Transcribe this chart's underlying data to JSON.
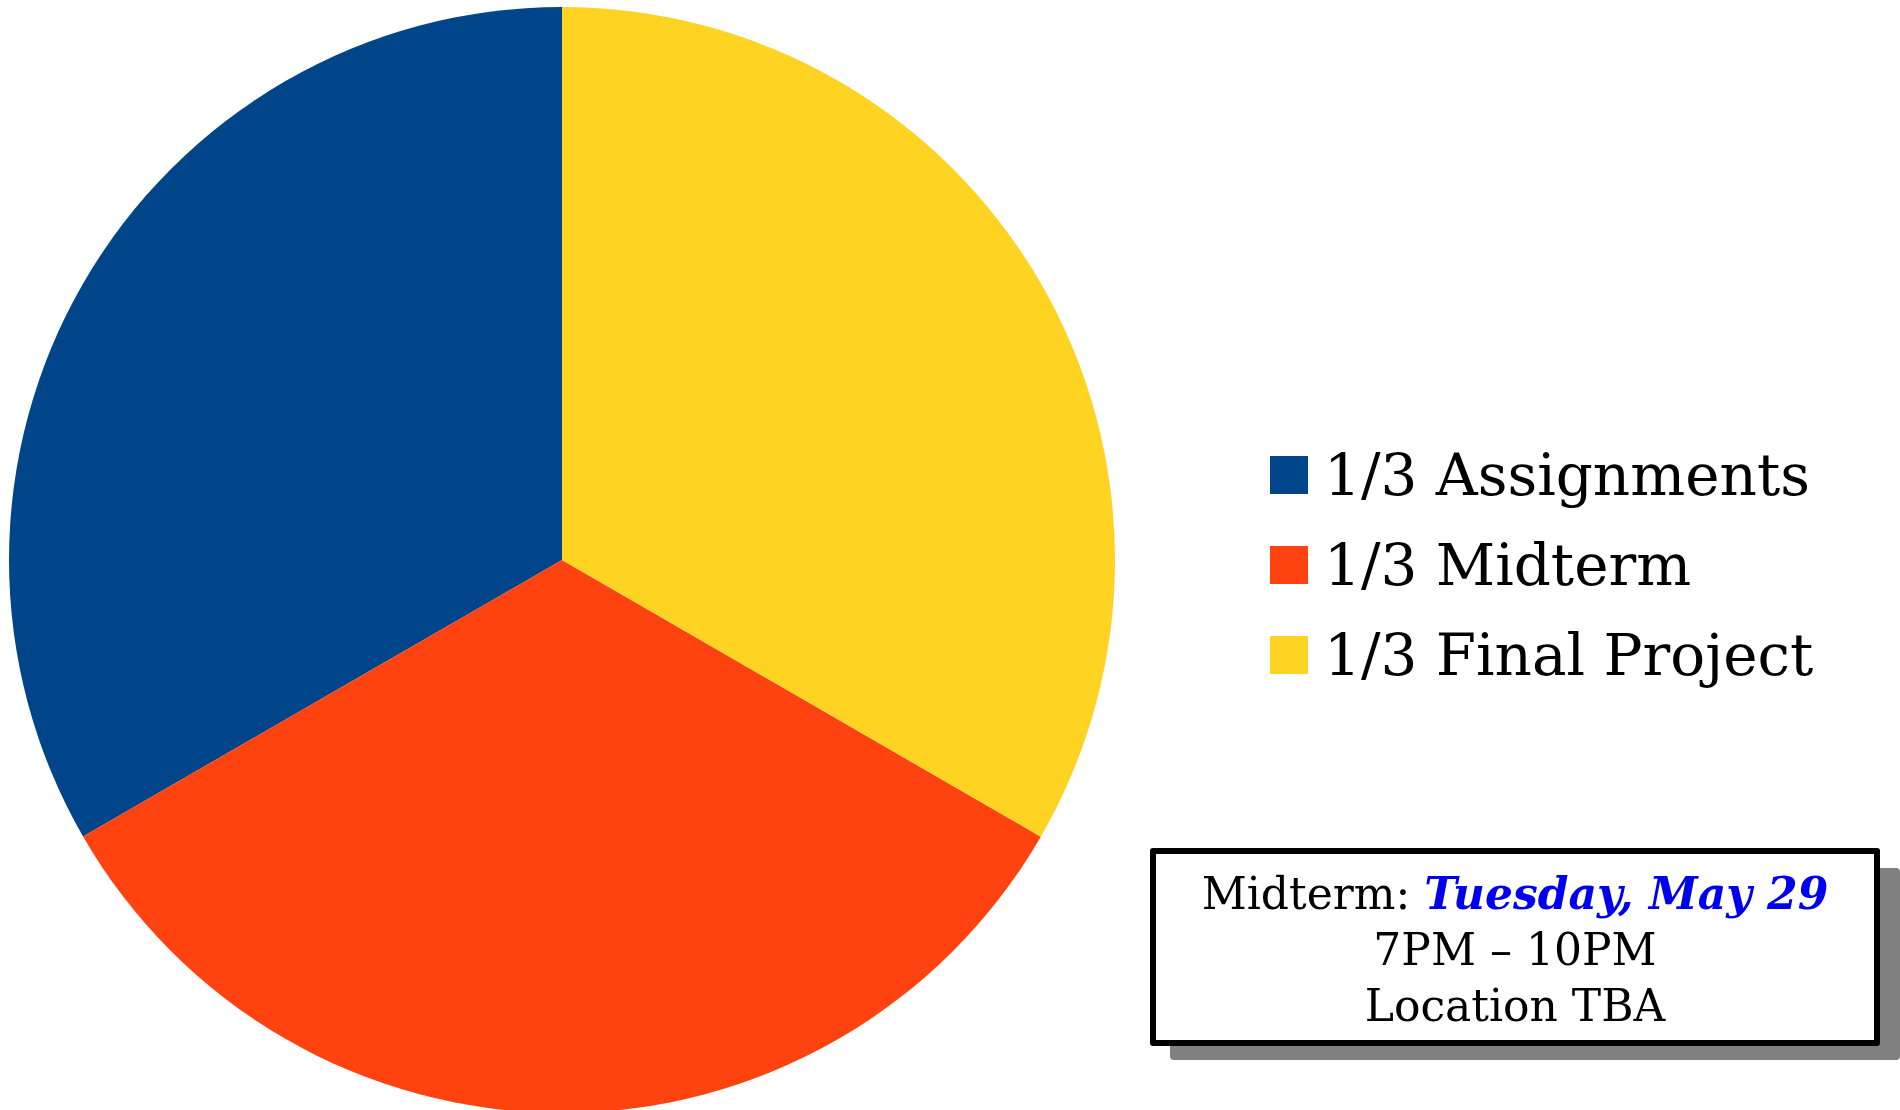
{
  "chart_data": {
    "type": "pie",
    "categories": [
      "1/3 Assignments",
      "1/3 Midterm",
      "1/3 Final Project"
    ],
    "values": [
      33.33,
      33.33,
      33.34
    ],
    "colors": [
      "#00458a",
      "#ff4310",
      "#fed322"
    ],
    "legend": "right",
    "annotations": [
      "Midterm:",
      "Tuesday, May 29",
      "7PM – 10PM",
      "Location TBA"
    ]
  }
}
